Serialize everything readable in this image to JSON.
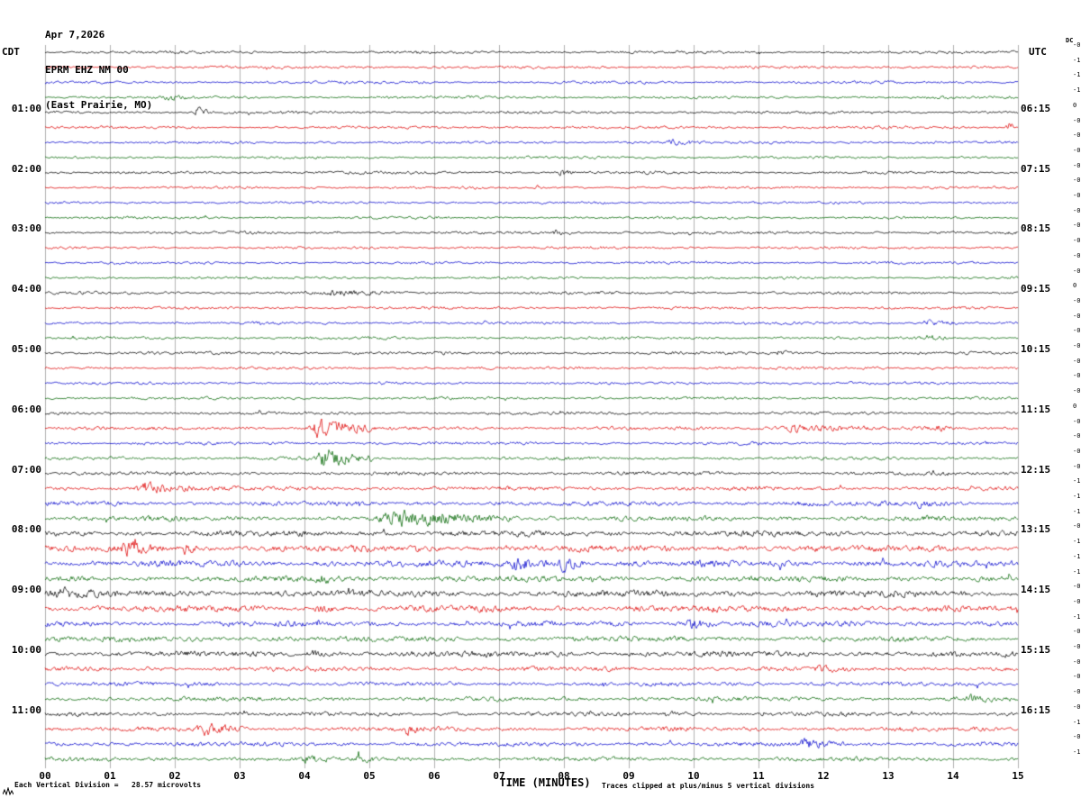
{
  "header": {
    "date": "Apr 7,2026",
    "station": "EPRM EHZ NM 00",
    "location": "(East Prairie, MO)"
  },
  "axes": {
    "left_tz": "CDT",
    "right_tz": "UTC",
    "dc_label": "DC",
    "x_title": "TIME (MINUTES)",
    "x_ticks": [
      "00",
      "01",
      "02",
      "03",
      "04",
      "05",
      "06",
      "07",
      "08",
      "09",
      "10",
      "11",
      "12",
      "13",
      "14",
      "15"
    ],
    "footer_left": "Each Vertical Division =   28.57 microvolts",
    "footer_right": "Traces clipped at plus/minus 5 vertical divisions",
    "left_labels": [
      {
        "row": 4,
        "text": "01:00"
      },
      {
        "row": 8,
        "text": "02:00"
      },
      {
        "row": 12,
        "text": "03:00"
      },
      {
        "row": 16,
        "text": "04:00"
      },
      {
        "row": 20,
        "text": "05:00"
      },
      {
        "row": 24,
        "text": "06:00"
      },
      {
        "row": 28,
        "text": "07:00"
      },
      {
        "row": 32,
        "text": "08:00"
      },
      {
        "row": 36,
        "text": "09:00"
      },
      {
        "row": 40,
        "text": "10:00"
      },
      {
        "row": 44,
        "text": "11:00"
      }
    ],
    "right_labels": [
      {
        "row": 4,
        "text": "06:15"
      },
      {
        "row": 8,
        "text": "07:15"
      },
      {
        "row": 12,
        "text": "08:15"
      },
      {
        "row": 16,
        "text": "09:15"
      },
      {
        "row": 20,
        "text": "10:15"
      },
      {
        "row": 24,
        "text": "11:15"
      },
      {
        "row": 28,
        "text": "12:15"
      },
      {
        "row": 32,
        "text": "13:15"
      },
      {
        "row": 36,
        "text": "14:15"
      },
      {
        "row": 40,
        "text": "15:15"
      },
      {
        "row": 44,
        "text": "16:15"
      }
    ]
  },
  "chart_data": {
    "type": "line",
    "title": "EPRM EHZ NM 00 (East Prairie, MO) helicorder, Apr 7,2026",
    "x_range_minutes": [
      0,
      15
    ],
    "minutes_per_row": 15,
    "grid": "#8f8f8f",
    "palette": [
      "#000000",
      "#dd0000",
      "#0000cc",
      "#006600"
    ],
    "rows": [
      {
        "t": "00:00",
        "dc": "-0",
        "amp": 1.0
      },
      {
        "t": "00:15",
        "dc": "-1",
        "amp": 1.0
      },
      {
        "t": "00:30",
        "dc": "-1",
        "amp": 1.0
      },
      {
        "t": "00:45",
        "dc": "-1",
        "amp": 1.0
      },
      {
        "t": "01:00",
        "dc": "0",
        "amp": 1.0
      },
      {
        "t": "01:15",
        "dc": "-0",
        "amp": 1.0
      },
      {
        "t": "01:30",
        "dc": "-0",
        "amp": 1.0
      },
      {
        "t": "01:45",
        "dc": "-0",
        "amp": 0.9
      },
      {
        "t": "02:00",
        "dc": "-0",
        "amp": 1.0
      },
      {
        "t": "02:15",
        "dc": "-0",
        "amp": 0.9
      },
      {
        "t": "02:30",
        "dc": "-0",
        "amp": 0.9
      },
      {
        "t": "02:45",
        "dc": "-0",
        "amp": 0.9
      },
      {
        "t": "03:00",
        "dc": "-0",
        "amp": 1.0
      },
      {
        "t": "03:15",
        "dc": "-0",
        "amp": 0.9
      },
      {
        "t": "03:30",
        "dc": "-0",
        "amp": 0.9
      },
      {
        "t": "03:45",
        "dc": "-0",
        "amp": 0.9
      },
      {
        "t": "04:00",
        "dc": "0",
        "amp": 1.1
      },
      {
        "t": "04:15",
        "dc": "-0",
        "amp": 1.0
      },
      {
        "t": "04:30",
        "dc": "-0",
        "amp": 1.0
      },
      {
        "t": "04:45",
        "dc": "-0",
        "amp": 1.0
      },
      {
        "t": "05:00",
        "dc": "-0",
        "amp": 1.1
      },
      {
        "t": "05:15",
        "dc": "-0",
        "amp": 1.0
      },
      {
        "t": "05:30",
        "dc": "-0",
        "amp": 1.0
      },
      {
        "t": "05:45",
        "dc": "-0",
        "amp": 1.0
      },
      {
        "t": "06:00",
        "dc": "0",
        "amp": 1.1
      },
      {
        "t": "06:15",
        "dc": "-0",
        "amp": 1.3
      },
      {
        "t": "06:30",
        "dc": "-0",
        "amp": 1.1
      },
      {
        "t": "06:45",
        "dc": "-0",
        "amp": 1.2
      },
      {
        "t": "07:00",
        "dc": "-0",
        "amp": 1.3
      },
      {
        "t": "07:15",
        "dc": "-1",
        "amp": 1.5
      },
      {
        "t": "07:30",
        "dc": "-1",
        "amp": 1.7
      },
      {
        "t": "07:45",
        "dc": "-1",
        "amp": 1.8
      },
      {
        "t": "08:00",
        "dc": "-0",
        "amp": 2.1
      },
      {
        "t": "08:15",
        "dc": "-1",
        "amp": 2.3
      },
      {
        "t": "08:30",
        "dc": "-1",
        "amp": 2.3
      },
      {
        "t": "08:45",
        "dc": "-1",
        "amp": 2.1
      },
      {
        "t": "09:00",
        "dc": "-0",
        "amp": 2.5
      },
      {
        "t": "09:15",
        "dc": "-0",
        "amp": 2.3
      },
      {
        "t": "09:30",
        "dc": "-1",
        "amp": 2.0
      },
      {
        "t": "09:45",
        "dc": "-0",
        "amp": 2.0
      },
      {
        "t": "10:00",
        "dc": "-0",
        "amp": 2.1
      },
      {
        "t": "10:15",
        "dc": "-0",
        "amp": 1.6
      },
      {
        "t": "10:30",
        "dc": "-0",
        "amp": 1.5
      },
      {
        "t": "10:45",
        "dc": "-0",
        "amp": 1.6
      },
      {
        "t": "11:00",
        "dc": "-0",
        "amp": 1.5
      },
      {
        "t": "11:15",
        "dc": "-1",
        "amp": 1.6
      },
      {
        "t": "11:30",
        "dc": "-0",
        "amp": 1.6
      },
      {
        "t": "11:45",
        "dc": "-1",
        "amp": 1.5
      }
    ],
    "events": [
      {
        "row": 3,
        "s": 1.8,
        "e": 2.2,
        "a": 2.5
      },
      {
        "row": 4,
        "s": 2.3,
        "e": 2.55,
        "a": 4.5
      },
      {
        "row": 5,
        "s": 14.8,
        "e": 15.0,
        "a": 5.5
      },
      {
        "row": 6,
        "s": 9.55,
        "e": 10.1,
        "a": 2.2
      },
      {
        "row": 8,
        "s": 7.9,
        "e": 8.2,
        "a": 2.5
      },
      {
        "row": 12,
        "s": 7.8,
        "e": 8.1,
        "a": 2.5
      },
      {
        "row": 16,
        "s": 4.3,
        "e": 5.2,
        "a": 1.8
      },
      {
        "row": 18,
        "s": 13.5,
        "e": 14.05,
        "a": 2.4
      },
      {
        "row": 19,
        "s": 13.55,
        "e": 13.9,
        "a": 2.8
      },
      {
        "row": 20,
        "s": 11.25,
        "e": 11.6,
        "a": 1.8
      },
      {
        "row": 25,
        "s": 4.05,
        "e": 5.0,
        "a": 8.5
      },
      {
        "row": 25,
        "s": 11.3,
        "e": 12.7,
        "a": 2.8
      },
      {
        "row": 25,
        "s": 13.7,
        "e": 14.0,
        "a": 2.2
      },
      {
        "row": 27,
        "s": 4.15,
        "e": 5.05,
        "a": 7.5
      },
      {
        "row": 29,
        "s": 1.35,
        "e": 2.35,
        "a": 4.0
      },
      {
        "row": 30,
        "s": 13.35,
        "e": 13.95,
        "a": 3.0
      },
      {
        "row": 31,
        "s": 5.05,
        "e": 7.3,
        "a": 4.8
      },
      {
        "row": 33,
        "s": 1.15,
        "e": 1.85,
        "a": 4.0
      },
      {
        "row": 33,
        "s": 2.1,
        "e": 2.4,
        "a": 3.0
      },
      {
        "row": 33,
        "s": 13.4,
        "e": 13.9,
        "a": 2.5
      },
      {
        "row": 34,
        "s": 7.15,
        "e": 7.75,
        "a": 5.5
      },
      {
        "row": 34,
        "s": 7.9,
        "e": 8.35,
        "a": 4.5
      },
      {
        "row": 35,
        "s": 4.15,
        "e": 4.6,
        "a": 3.0
      },
      {
        "row": 36,
        "s": 0.1,
        "e": 0.9,
        "a": 2.5
      },
      {
        "row": 37,
        "s": 4.15,
        "e": 4.45,
        "a": 3.5
      },
      {
        "row": 38,
        "s": 9.85,
        "e": 10.45,
        "a": 3.5
      },
      {
        "row": 40,
        "s": 4.0,
        "e": 4.5,
        "a": 2.0
      },
      {
        "row": 41,
        "s": 11.85,
        "e": 12.25,
        "a": 1.8
      },
      {
        "row": 43,
        "s": 14.15,
        "e": 14.65,
        "a": 2.6
      },
      {
        "row": 44,
        "s": 9.5,
        "e": 9.9,
        "a": 2.0
      },
      {
        "row": 45,
        "s": 2.3,
        "e": 3.15,
        "a": 4.5
      },
      {
        "row": 45,
        "s": 5.5,
        "e": 5.85,
        "a": 3.8
      },
      {
        "row": 46,
        "s": 11.55,
        "e": 12.35,
        "a": 2.8
      },
      {
        "row": 47,
        "s": 3.95,
        "e": 4.35,
        "a": 2.5
      },
      {
        "row": 47,
        "s": 4.75,
        "e": 5.1,
        "a": 2.2
      }
    ]
  }
}
